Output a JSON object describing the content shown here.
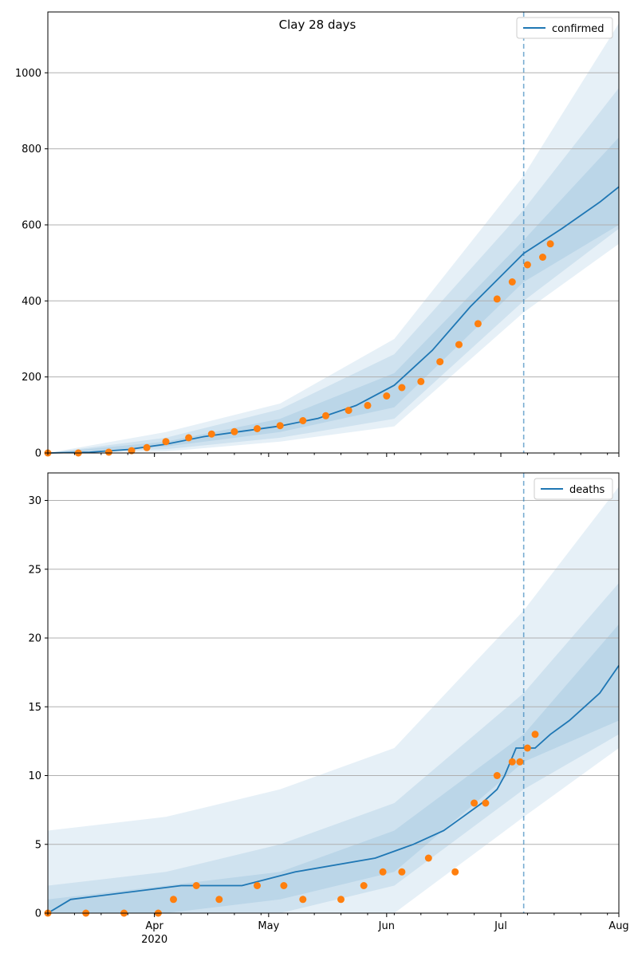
{
  "chart_data": [
    {
      "type": "line",
      "title": "Clay 28 days",
      "legend": {
        "entries": [
          "confirmed"
        ],
        "placement": "upper right"
      },
      "grid": {
        "y": true,
        "x": false
      },
      "ylim": [
        0,
        1160
      ],
      "xlim": [
        "2020-03-04",
        "2020-08-01"
      ],
      "yticks": [
        0,
        200,
        400,
        600,
        800,
        1000
      ],
      "forecast_start": "2020-07-07",
      "colors": {
        "line": "#1f77b4",
        "observed": "#ff7f0e",
        "band": "#1f77b4",
        "grid": "#b0b0b0"
      },
      "series": [
        {
          "name": "confirmed",
          "fit": {
            "x": [
              "2020-03-04",
              "2020-03-15",
              "2020-03-25",
              "2020-04-04",
              "2020-04-14",
              "2020-04-24",
              "2020-05-04",
              "2020-05-14",
              "2020-05-24",
              "2020-06-03",
              "2020-06-13",
              "2020-06-23",
              "2020-07-07",
              "2020-07-17",
              "2020-07-27",
              "2020-08-01"
            ],
            "y": [
              0,
              2,
              9,
              23,
              43,
              57,
              71,
              91,
              125,
              178,
              270,
              385,
              525,
              590,
              660,
              700
            ]
          }
        },
        {
          "name": "observed",
          "x": [
            "2020-03-04",
            "2020-03-12",
            "2020-03-20",
            "2020-03-26",
            "2020-03-30",
            "2020-04-04",
            "2020-04-10",
            "2020-04-16",
            "2020-04-22",
            "2020-04-28",
            "2020-05-04",
            "2020-05-10",
            "2020-05-16",
            "2020-05-22",
            "2020-05-27",
            "2020-06-01",
            "2020-06-05",
            "2020-06-10",
            "2020-06-15",
            "2020-06-20",
            "2020-06-25",
            "2020-06-30",
            "2020-07-04",
            "2020-07-08",
            "2020-07-12",
            "2020-07-14"
          ],
          "y": [
            0,
            0,
            2,
            6,
            14,
            30,
            40,
            50,
            56,
            64,
            72,
            85,
            98,
            112,
            125,
            150,
            172,
            188,
            240,
            285,
            340,
            405,
            450,
            495,
            515,
            550
          ]
        }
      ],
      "bands": [
        {
          "x": [
            "2020-03-04",
            "2020-04-04",
            "2020-05-04",
            "2020-06-03",
            "2020-07-07",
            "2020-08-01"
          ],
          "lower": [
            0,
            17,
            55,
            120,
            450,
            600
          ],
          "upper": [
            0,
            30,
            90,
            210,
            560,
            830
          ]
        },
        {
          "x": [
            "2020-03-04",
            "2020-04-04",
            "2020-05-04",
            "2020-06-03",
            "2020-07-07",
            "2020-08-01"
          ],
          "lower": [
            0,
            10,
            40,
            90,
            400,
            590
          ],
          "upper": [
            0,
            40,
            115,
            260,
            640,
            960
          ]
        },
        {
          "x": [
            "2020-03-04",
            "2020-04-04",
            "2020-05-04",
            "2020-06-03",
            "2020-07-07",
            "2020-08-01"
          ],
          "lower": [
            0,
            4,
            30,
            70,
            370,
            550
          ],
          "upper": [
            0,
            55,
            130,
            300,
            730,
            1130
          ]
        }
      ]
    },
    {
      "type": "line",
      "title": "",
      "legend": {
        "entries": [
          "deaths"
        ],
        "placement": "upper right"
      },
      "grid": {
        "y": true,
        "x": false
      },
      "ylim": [
        0,
        32
      ],
      "xlim": [
        "2020-03-04",
        "2020-08-01"
      ],
      "yticks": [
        0,
        5,
        10,
        15,
        20,
        25,
        30
      ],
      "forecast_start": "2020-07-07",
      "xticks": [
        {
          "date": "2020-04-01",
          "label": "Apr",
          "sub": "2020"
        },
        {
          "date": "2020-05-01",
          "label": "May"
        },
        {
          "date": "2020-06-01",
          "label": "Jun"
        },
        {
          "date": "2020-07-01",
          "label": "Jul"
        },
        {
          "date": "2020-08-01",
          "label": "Aug"
        }
      ],
      "series": [
        {
          "name": "deaths",
          "fit": {
            "x": [
              "2020-03-04",
              "2020-03-10",
              "2020-04-08",
              "2020-04-24",
              "2020-05-08",
              "2020-05-29",
              "2020-06-08",
              "2020-06-16",
              "2020-06-21",
              "2020-06-26",
              "2020-06-30",
              "2020-07-02",
              "2020-07-05",
              "2020-07-10",
              "2020-07-14",
              "2020-07-19",
              "2020-07-23",
              "2020-07-27",
              "2020-08-01"
            ],
            "y": [
              0,
              1,
              2,
              2,
              3,
              4,
              5,
              6,
              7,
              8,
              9,
              10,
              12,
              12,
              13,
              14,
              15,
              16,
              18
            ]
          }
        },
        {
          "name": "observed",
          "x": [
            "2020-03-04",
            "2020-03-14",
            "2020-03-24",
            "2020-04-02",
            "2020-04-06",
            "2020-04-12",
            "2020-04-18",
            "2020-04-28",
            "2020-05-05",
            "2020-05-10",
            "2020-05-20",
            "2020-05-26",
            "2020-05-31",
            "2020-06-05",
            "2020-06-12",
            "2020-06-19",
            "2020-06-24",
            "2020-06-27",
            "2020-06-30",
            "2020-07-04",
            "2020-07-06",
            "2020-07-08",
            "2020-07-10"
          ],
          "y": [
            0,
            0,
            0,
            0,
            1,
            2,
            1,
            2,
            2,
            1,
            1,
            2,
            3,
            3,
            4,
            3,
            8,
            8,
            10,
            11,
            11,
            12,
            13
          ]
        }
      ],
      "bands": [
        {
          "x": [
            "2020-03-04",
            "2020-04-04",
            "2020-05-04",
            "2020-06-03",
            "2020-07-07",
            "2020-08-01"
          ],
          "lower": [
            0,
            0,
            1,
            3,
            11,
            14
          ],
          "upper": [
            1,
            2,
            3,
            6,
            13,
            21
          ]
        },
        {
          "x": [
            "2020-03-04",
            "2020-04-04",
            "2020-05-04",
            "2020-06-03",
            "2020-07-07",
            "2020-08-01"
          ],
          "lower": [
            0,
            0,
            0,
            2,
            9,
            13
          ],
          "upper": [
            2,
            3,
            5,
            8,
            16,
            24
          ]
        },
        {
          "x": [
            "2020-03-04",
            "2020-04-04",
            "2020-05-04",
            "2020-06-03",
            "2020-07-07",
            "2020-08-01"
          ],
          "lower": [
            0,
            0,
            0,
            0,
            7,
            12
          ],
          "upper": [
            6,
            7,
            9,
            12,
            22,
            31
          ]
        }
      ]
    }
  ]
}
